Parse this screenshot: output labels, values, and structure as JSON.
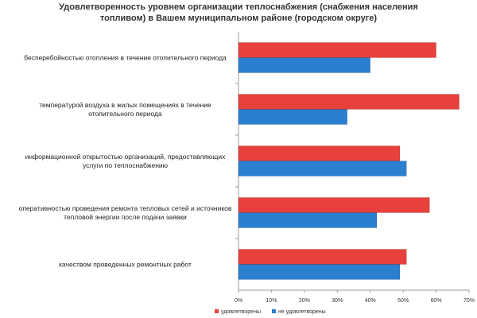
{
  "chart_data": {
    "type": "barh",
    "title": "Удовлетворенность уровнем организации теплоснабжения (снабжения населения топливом) в Вашем муниципальном районе (городском округе)",
    "categories": [
      "бесперебойностью отопления в течение отопительного периода",
      "температурой воздуха в жилых помещениях в течение отопительного периода",
      "информационной открытостью организаций, предоставляющих услуги по теплоснабжению",
      "оперативностью проведения ремонта тепловых сетей и источников тепловой энергии после подачи заявки",
      "качеством проведенных ремонтных работ"
    ],
    "series": [
      {
        "name": "удовлетворены",
        "color": "#e8403c",
        "values": [
          60,
          67,
          49,
          58,
          51
        ]
      },
      {
        "name": "не удовлетворены",
        "color": "#2b7fd1",
        "values": [
          40,
          33,
          51,
          42,
          49
        ]
      }
    ],
    "xlim": [
      0,
      70
    ],
    "xticks": [
      {
        "value": 0,
        "label": "0%"
      },
      {
        "value": 10,
        "label": "10%"
      },
      {
        "value": 20,
        "label": "20%"
      },
      {
        "value": 30,
        "label": "30%"
      },
      {
        "value": 40,
        "label": "40%"
      },
      {
        "value": 50,
        "label": "50%"
      },
      {
        "value": 60,
        "label": "60%"
      },
      {
        "value": 70,
        "label": "70%"
      }
    ],
    "legend": "bottom"
  }
}
